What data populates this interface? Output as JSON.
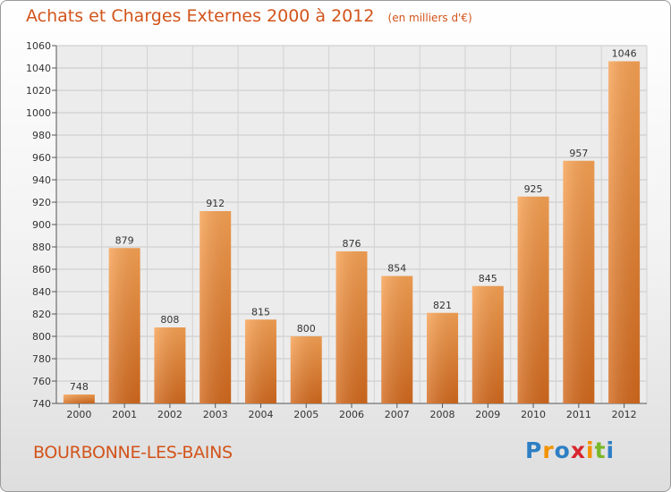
{
  "chart_data": {
    "type": "bar",
    "title": "Achats et Charges Externes 2000 à 2012",
    "subtitle": "(en milliers d'€)",
    "categories": [
      "2000",
      "2001",
      "2002",
      "2003",
      "2004",
      "2005",
      "2006",
      "2007",
      "2008",
      "2009",
      "2010",
      "2011",
      "2012"
    ],
    "values": [
      748,
      879,
      808,
      912,
      815,
      800,
      876,
      854,
      821,
      845,
      925,
      957,
      1046
    ],
    "ylim": [
      740,
      1060
    ],
    "yticks": [
      740,
      760,
      780,
      800,
      820,
      840,
      860,
      880,
      900,
      920,
      940,
      960,
      980,
      1000,
      1020,
      1040,
      1060
    ],
    "xlabel": "",
    "ylabel": "",
    "grid": true,
    "bar_color": "#f0913c"
  },
  "commune": "BOURBONNE-LES-BAINS",
  "logo": {
    "text": "Proxiti",
    "letters": [
      "P",
      "r",
      "o",
      "x",
      "i",
      "t",
      "i"
    ],
    "colors": [
      "#2e7fc4",
      "#f39200",
      "#2e7fc4",
      "#d8262e",
      "#f39200",
      "#79b829",
      "#2e7fc4"
    ]
  },
  "accent_color": "#d2541b"
}
